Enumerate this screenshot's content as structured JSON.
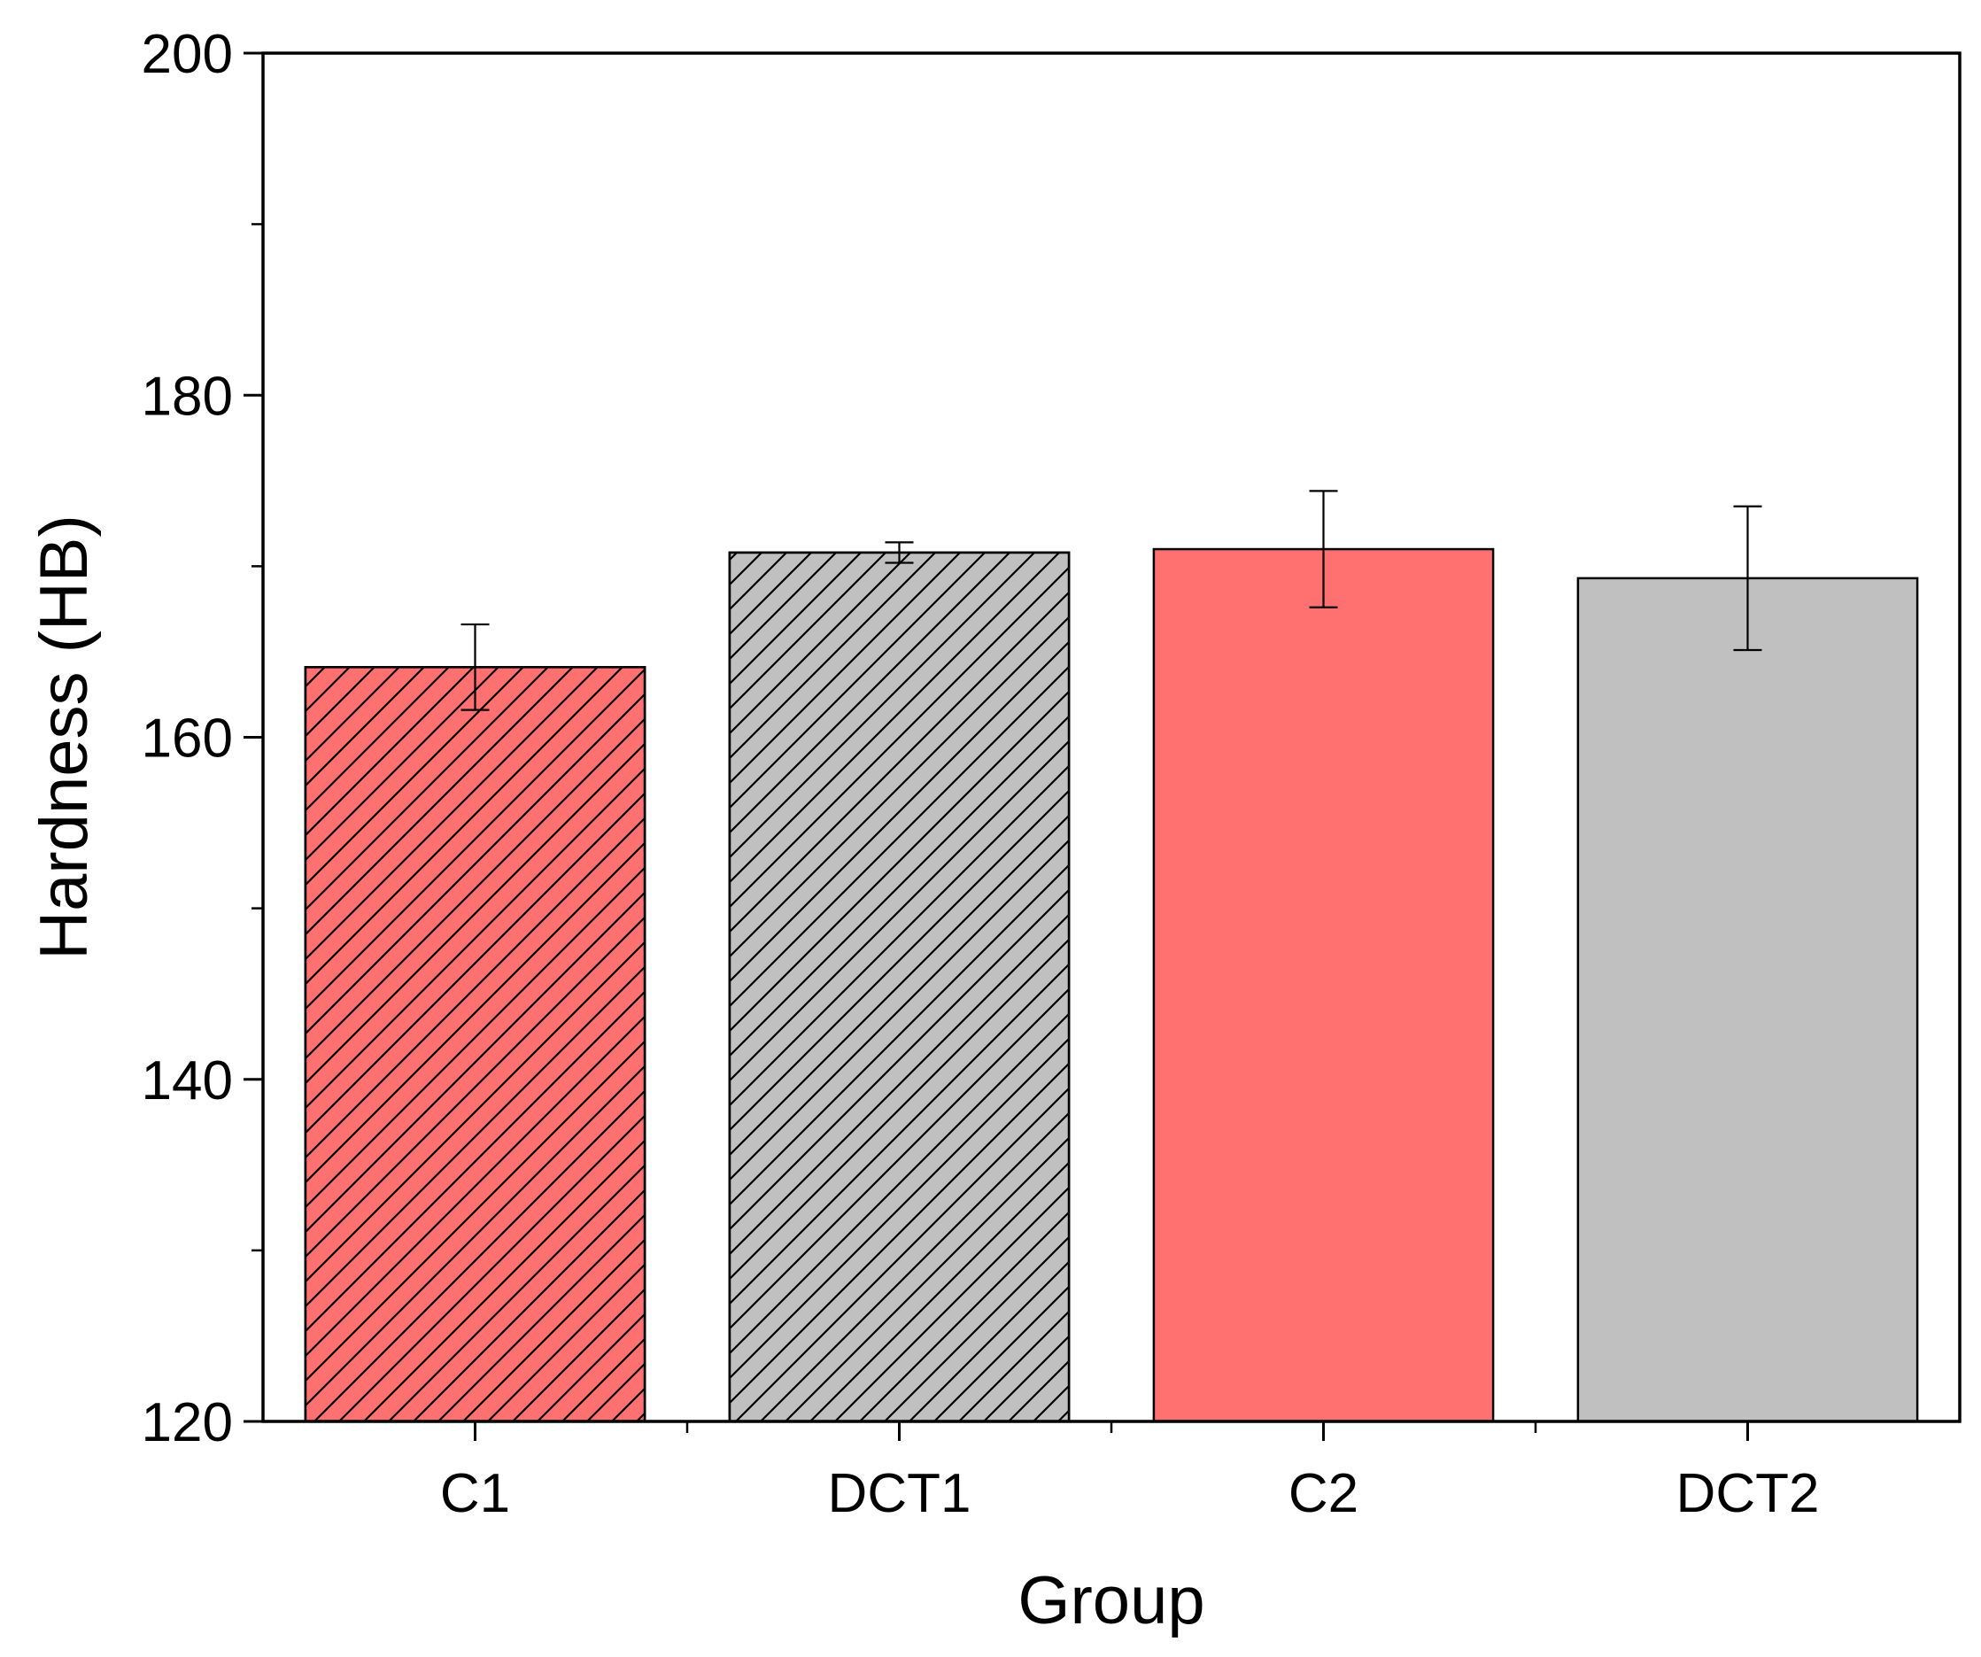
{
  "chart_data": {
    "type": "bar",
    "title": "",
    "xlabel": "Group",
    "ylabel": "Hardness (HB)",
    "categories": [
      "C1",
      "DCT1",
      "C2",
      "DCT2"
    ],
    "values": [
      164.1,
      170.8,
      171.0,
      169.3
    ],
    "errors": [
      2.5,
      0.6,
      3.4,
      4.2
    ],
    "patterns": [
      "hatched",
      "hatched",
      "solid",
      "solid"
    ],
    "colors": [
      "#ff7070",
      "#c0c0c0",
      "#ff7070",
      "#c0c0c0"
    ],
    "ylim": [
      120,
      200
    ],
    "yticks": [
      120,
      140,
      160,
      180,
      200
    ],
    "yminor_step": 10,
    "grid": false,
    "legend": "none"
  }
}
